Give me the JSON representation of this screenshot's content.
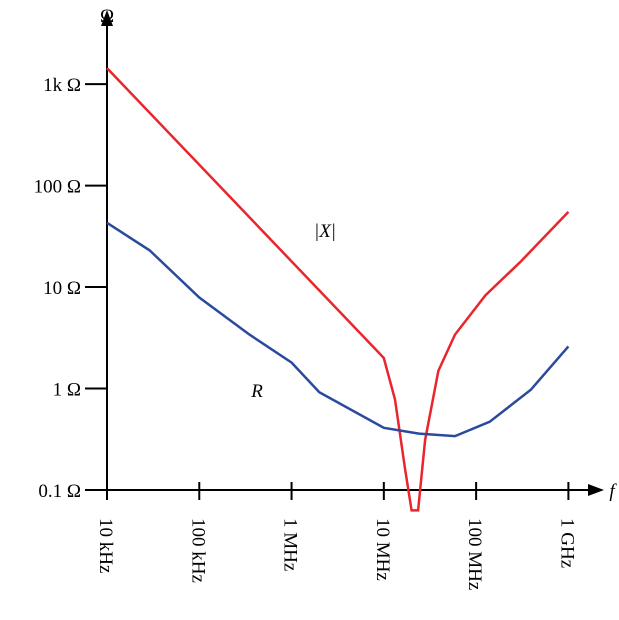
{
  "chart_data": {
    "type": "line",
    "x_label": "f",
    "y_label": "Ω",
    "xscale": "log",
    "yscale": "log",
    "xlim": [
      10000,
      2200000000
    ],
    "ylim": [
      0.1,
      4800
    ],
    "xticks": [
      {
        "value": 10000,
        "label": "10 kHz"
      },
      {
        "value": 100000,
        "label": "100 kHz"
      },
      {
        "value": 1000000,
        "label": "1 MHz"
      },
      {
        "value": 10000000,
        "label": "10 MHz"
      },
      {
        "value": 100000000,
        "label": "100 MHz"
      },
      {
        "value": 1000000000,
        "label": "1 GHz"
      }
    ],
    "yticks": [
      {
        "value": 0.1,
        "label": "0.1 Ω"
      },
      {
        "value": 1,
        "label": "1 Ω"
      },
      {
        "value": 10,
        "label": "10 Ω"
      },
      {
        "value": 100,
        "label": "100 Ω"
      },
      {
        "value": 1000,
        "label": "1k Ω"
      }
    ],
    "series": [
      {
        "name": "|X|",
        "color": "#e8262b",
        "x": [
          10000,
          10000000,
          13200000,
          17000000,
          20000000,
          23500000,
          28000000,
          39000000,
          59000000,
          126000000,
          300000000,
          1000000000
        ],
        "values": [
          1440,
          2.0,
          0.78,
          0.16,
          0.063,
          0.063,
          0.31,
          1.5,
          3.4,
          8.3,
          17.6,
          55
        ]
      },
      {
        "name": "R",
        "color": "#2b4a9e",
        "x": [
          10000,
          29000,
          100000,
          350000,
          1000000,
          2000000,
          10000000,
          24000000,
          59000000,
          140000000,
          390000000,
          1000000000
        ],
        "values": [
          43,
          23,
          7.9,
          3.4,
          1.8,
          0.92,
          0.41,
          0.36,
          0.34,
          0.47,
          0.97,
          2.6
        ]
      }
    ]
  }
}
